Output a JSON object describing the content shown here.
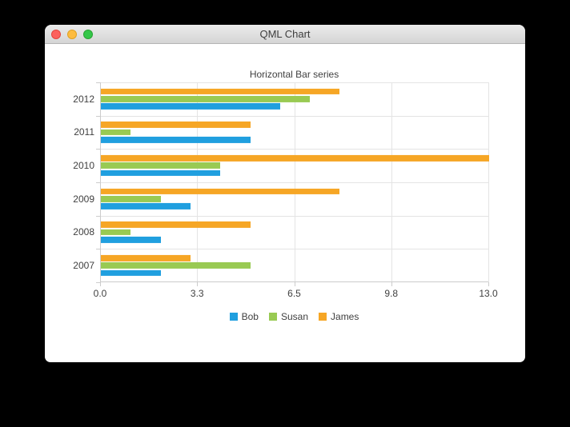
{
  "window": {
    "title": "QML Chart"
  },
  "chart_data": {
    "type": "bar",
    "orientation": "horizontal",
    "title": "Horizontal Bar series",
    "categories": [
      "2007",
      "2008",
      "2009",
      "2010",
      "2011",
      "2012"
    ],
    "series": [
      {
        "name": "Bob",
        "color": "#209fdf",
        "values": [
          2,
          2,
          3,
          4,
          5,
          6
        ]
      },
      {
        "name": "Susan",
        "color": "#99ca53",
        "values": [
          5,
          1,
          2,
          4,
          1,
          7
        ]
      },
      {
        "name": "James",
        "color": "#f6a625",
        "values": [
          3,
          5,
          8,
          13,
          5,
          8
        ]
      }
    ],
    "xlim": [
      0,
      13
    ],
    "x_ticks": [
      "0.0",
      "3.3",
      "6.5",
      "9.8",
      "13.0"
    ],
    "grid": true,
    "legend_position": "bottom"
  }
}
